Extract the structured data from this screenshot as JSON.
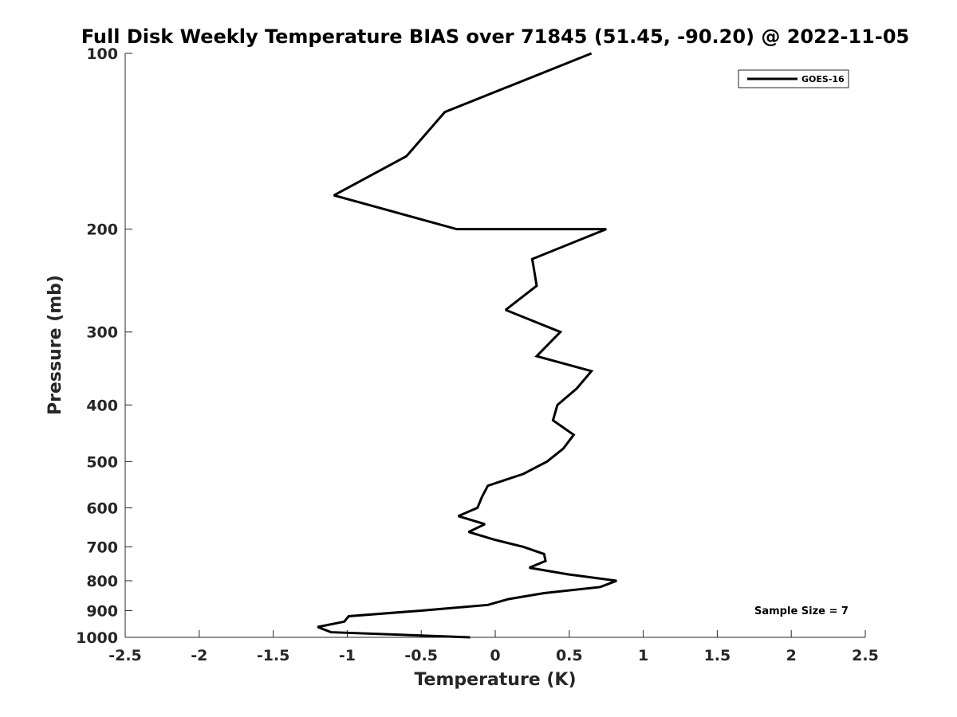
{
  "chart_data": {
    "type": "line",
    "title": "Full Disk Weekly Temperature BIAS over 71845 (51.45, -90.20) @ 2022-11-05",
    "xlabel": "Temperature (K)",
    "ylabel": "Pressure (mb)",
    "xlim": [
      -2.5,
      2.5
    ],
    "ylim": [
      100,
      1000
    ],
    "yscale": "log",
    "y_reversed": true,
    "grid": false,
    "legend_position": "top-right",
    "x_ticks": [
      -2.5,
      -2,
      -1.5,
      -1,
      -0.5,
      0,
      0.5,
      1,
      1.5,
      2,
      2.5
    ],
    "x_tick_labels": [
      "-2.5",
      "-2",
      "-1.5",
      "-1",
      "-0.5",
      "0",
      "0.5",
      "1",
      "1.5",
      "2",
      "2.5"
    ],
    "y_ticks": [
      100,
      200,
      300,
      400,
      500,
      600,
      700,
      800,
      900,
      1000
    ],
    "y_tick_labels": [
      "100",
      "200",
      "300",
      "400",
      "500",
      "600",
      "700",
      "800",
      "900",
      "1000"
    ],
    "series": [
      {
        "name": "GOES-16",
        "color": "#000000",
        "points": [
          {
            "x": 0.65,
            "y": 100
          },
          {
            "x": -0.34,
            "y": 126
          },
          {
            "x": -0.6,
            "y": 150
          },
          {
            "x": -1.09,
            "y": 175
          },
          {
            "x": -0.26,
            "y": 200
          },
          {
            "x": 0.75,
            "y": 200
          },
          {
            "x": 0.25,
            "y": 225
          },
          {
            "x": 0.28,
            "y": 250
          },
          {
            "x": 0.07,
            "y": 275
          },
          {
            "x": 0.44,
            "y": 300
          },
          {
            "x": 0.28,
            "y": 330
          },
          {
            "x": 0.65,
            "y": 350
          },
          {
            "x": 0.55,
            "y": 375
          },
          {
            "x": 0.42,
            "y": 400
          },
          {
            "x": 0.39,
            "y": 425
          },
          {
            "x": 0.53,
            "y": 450
          },
          {
            "x": 0.46,
            "y": 475
          },
          {
            "x": 0.35,
            "y": 500
          },
          {
            "x": 0.19,
            "y": 525
          },
          {
            "x": -0.05,
            "y": 550
          },
          {
            "x": -0.09,
            "y": 575
          },
          {
            "x": -0.12,
            "y": 600
          },
          {
            "x": -0.25,
            "y": 620
          },
          {
            "x": -0.07,
            "y": 640
          },
          {
            "x": -0.18,
            "y": 660
          },
          {
            "x": -0.01,
            "y": 680
          },
          {
            "x": 0.19,
            "y": 700
          },
          {
            "x": 0.33,
            "y": 720
          },
          {
            "x": 0.34,
            "y": 740
          },
          {
            "x": 0.23,
            "y": 760
          },
          {
            "x": 0.49,
            "y": 780
          },
          {
            "x": 0.82,
            "y": 800
          },
          {
            "x": 0.71,
            "y": 820
          },
          {
            "x": 0.33,
            "y": 840
          },
          {
            "x": 0.09,
            "y": 860
          },
          {
            "x": -0.05,
            "y": 880
          },
          {
            "x": -0.5,
            "y": 900
          },
          {
            "x": -0.99,
            "y": 920
          },
          {
            "x": -1.02,
            "y": 940
          },
          {
            "x": -1.2,
            "y": 960
          },
          {
            "x": -1.11,
            "y": 980
          },
          {
            "x": -0.17,
            "y": 1000
          }
        ]
      }
    ],
    "annotation": "Sample Size = 7"
  }
}
